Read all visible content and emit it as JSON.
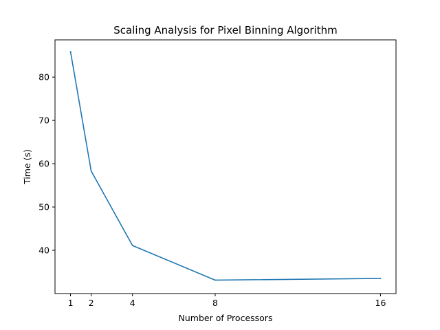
{
  "chart_data": {
    "type": "line",
    "title": "Scaling Analysis for Pixel Binning Algorithm",
    "xlabel": "Number of Processors",
    "ylabel": "Time (s)",
    "x": [
      1,
      2,
      4,
      8,
      16
    ],
    "series": [
      {
        "values": [
          85.9,
          58.3,
          41.1,
          33.1,
          33.5
        ],
        "color": "#1f77b4"
      }
    ],
    "xticks": [
      1,
      2,
      4,
      8,
      16
    ],
    "yticks": [
      40,
      50,
      60,
      70,
      80
    ],
    "xlim": [
      0.25,
      16.75
    ],
    "ylim": [
      30.0,
      88.6
    ],
    "grid": false,
    "legend": "none"
  }
}
